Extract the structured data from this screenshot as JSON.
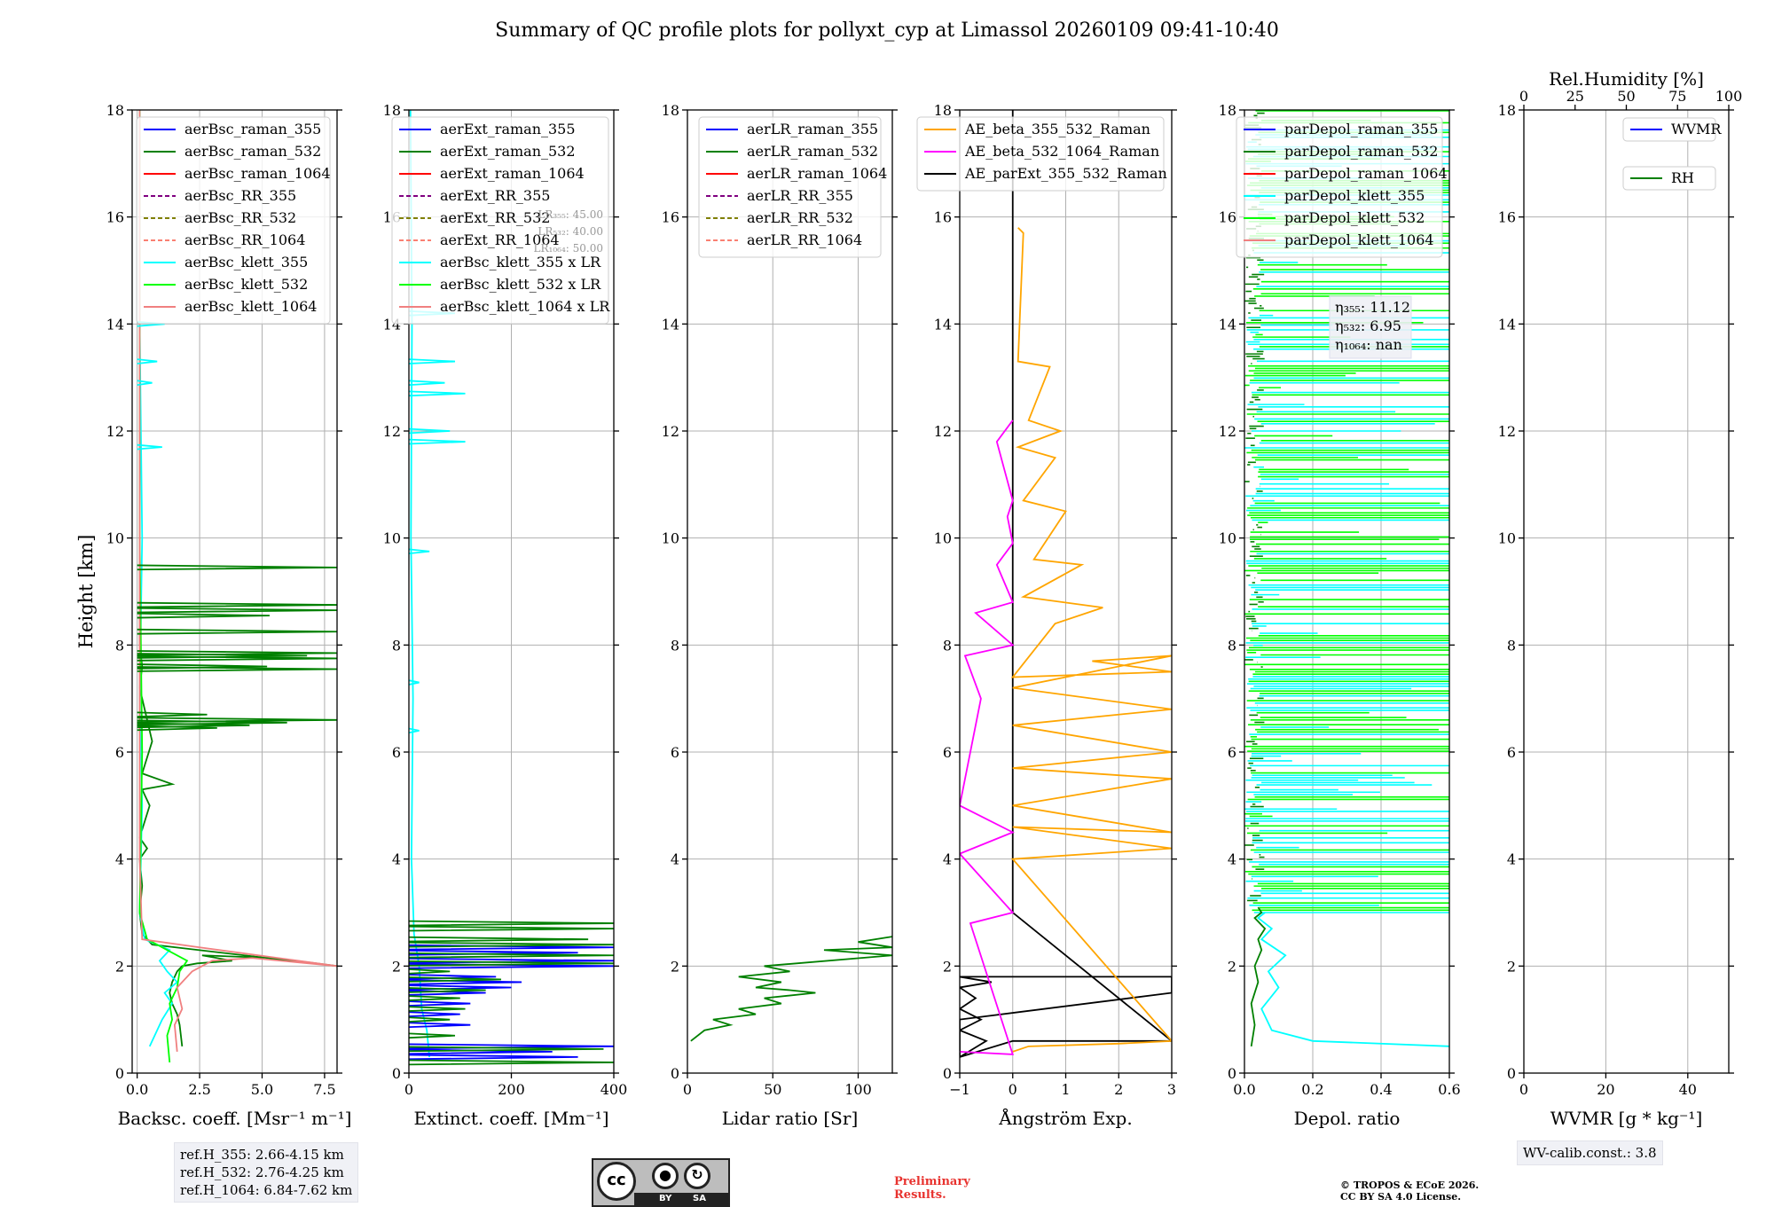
{
  "figure_title": "Summary of QC profile plots for pollyxt_cyp at Limassol 20260109 09:41-10:40",
  "ylabel": "Height [km]",
  "colors": {
    "blue": "#0000ff",
    "green": "#008000",
    "red": "#ff0000",
    "purple": "#800080",
    "olive": "#808000",
    "salmon": "#fa8072",
    "cyan": "#00ffff",
    "lime": "#00ff00",
    "lightcoral": "#f08080",
    "orange": "#ffa500",
    "magenta": "#ff00ff",
    "black": "#000000"
  },
  "chart_data": [
    {
      "id": "bsc",
      "type": "line",
      "xlabel": "Backsc. coeff. [Msr⁻¹ m⁻¹]",
      "xlim": [
        -0.2,
        8.0
      ],
      "ylim": [
        0,
        18
      ],
      "xticks": [
        0.0,
        2.5,
        5.0,
        7.5
      ],
      "xticklabels": [
        "0.0",
        "2.5",
        "5.0",
        "7.5"
      ],
      "yticks": [
        0,
        2,
        4,
        6,
        8,
        10,
        12,
        14,
        16,
        18
      ],
      "legend": [
        {
          "label": "aerBsc_raman_355",
          "color": "blue",
          "dash": false
        },
        {
          "label": "aerBsc_raman_532",
          "color": "green",
          "dash": false
        },
        {
          "label": "aerBsc_raman_1064",
          "color": "red",
          "dash": false
        },
        {
          "label": "aerBsc_RR_355",
          "color": "purple",
          "dash": true
        },
        {
          "label": "aerBsc_RR_532",
          "color": "olive",
          "dash": true
        },
        {
          "label": "aerBsc_RR_1064",
          "color": "salmon",
          "dash": true
        },
        {
          "label": "aerBsc_klett_355",
          "color": "cyan",
          "dash": false
        },
        {
          "label": "aerBsc_klett_532",
          "color": "lime",
          "dash": false
        },
        {
          "label": "aerBsc_klett_1064",
          "color": "lightcoral",
          "dash": false
        }
      ],
      "series": [
        {
          "name": "aerBsc_raman_532",
          "color": "green",
          "x": [
            1.8,
            1.7,
            1.6,
            1.4,
            1.3,
            1.4,
            1.5,
            1.6,
            1.8,
            2.4,
            3.8,
            2.6,
            5.5,
            8.0,
            0.6,
            0.2,
            0.1,
            0.2,
            0.1,
            0.4,
            0.1,
            0.5,
            0.2,
            1.4,
            0.2,
            0.6,
            0.3,
            0.1,
            0.2,
            0.1,
            0.1,
            0.1
          ],
          "y": [
            0.5,
            0.9,
            1.1,
            1.3,
            1.5,
            1.7,
            1.8,
            1.9,
            2.0,
            2.05,
            2.1,
            2.2,
            2.15,
            2.0,
            2.4,
            2.6,
            3.0,
            3.5,
            4.0,
            4.2,
            4.4,
            5.0,
            5.3,
            5.4,
            5.6,
            6.2,
            6.8,
            7.2,
            7.6,
            8.0,
            10.0,
            18.0
          ]
        },
        {
          "name": "aerBsc_klett_355",
          "color": "cyan",
          "x": [
            0.5,
            0.8,
            1.0,
            1.4,
            1.1,
            1.6,
            1.2,
            0.9,
            1.3,
            0.3,
            0.1,
            0.2,
            0.1,
            0.2,
            0.1,
            0.1
          ],
          "y": [
            0.5,
            0.8,
            1.0,
            1.3,
            1.5,
            1.7,
            1.9,
            2.1,
            2.3,
            2.5,
            3.0,
            5.0,
            7.0,
            10.0,
            14.0,
            18.0
          ]
        },
        {
          "name": "aerBsc_klett_532",
          "color": "lime",
          "x": [
            1.3,
            1.2,
            1.4,
            1.3,
            1.6,
            1.7,
            2.0,
            0.4,
            0.1,
            0.2,
            0.1,
            0.1
          ],
          "y": [
            0.2,
            0.7,
            1.0,
            1.3,
            1.6,
            1.9,
            2.1,
            2.5,
            3.0,
            6.0,
            10.0,
            18.0
          ]
        },
        {
          "name": "aerBsc_klett_1064",
          "color": "lightcoral",
          "x": [
            1.6,
            1.5,
            1.8,
            1.6,
            2.2,
            3.0,
            4.6,
            8.0,
            2.5,
            0.2,
            0.1,
            0.1
          ],
          "y": [
            0.4,
            0.9,
            1.2,
            1.6,
            1.9,
            2.1,
            2.15,
            2.0,
            2.35,
            2.5,
            4.0,
            18.0
          ]
        }
      ],
      "spikes": [
        {
          "color": "green",
          "y": [
            6.45,
            6.5,
            6.55,
            6.6,
            6.7,
            7.55,
            7.6,
            7.75,
            7.8,
            7.85,
            8.25,
            8.55,
            8.65,
            8.75,
            9.45
          ],
          "x": [
            3.2,
            4.5,
            6.0,
            8.0,
            2.8,
            8.0,
            5.2,
            8.0,
            6.8,
            8.0,
            8.0,
            5.3,
            8.0,
            8.0,
            8.0
          ]
        },
        {
          "color": "cyan",
          "y": [
            11.7,
            12.9,
            13.3,
            14.0
          ],
          "x": [
            1.0,
            0.6,
            0.8,
            1.1
          ]
        }
      ],
      "info": [
        "ref.H_355: 2.66-4.15 km",
        "ref.H_532: 2.76-4.25 km",
        "ref.H_1064: 6.84-7.62 km"
      ]
    },
    {
      "id": "ext",
      "type": "line",
      "xlabel": "Extinct. coeff. [Mm⁻¹]",
      "xlim": [
        0,
        400
      ],
      "ylim": [
        0,
        18
      ],
      "xticks": [
        0,
        200,
        400
      ],
      "xticklabels": [
        "0",
        "200",
        "400"
      ],
      "yticks": [
        0,
        2,
        4,
        6,
        8,
        10,
        12,
        14,
        16,
        18
      ],
      "legend": [
        {
          "label": "aerExt_raman_355",
          "color": "blue",
          "dash": false
        },
        {
          "label": "aerExt_raman_532",
          "color": "green",
          "dash": false
        },
        {
          "label": "aerExt_raman_1064",
          "color": "red",
          "dash": false
        },
        {
          "label": "aerExt_RR_355",
          "color": "purple",
          "dash": true
        },
        {
          "label": "aerExt_RR_532",
          "color": "olive",
          "dash": true
        },
        {
          "label": "aerExt_RR_1064",
          "color": "salmon",
          "dash": true
        },
        {
          "label": "aerBsc_klett_355 x LR",
          "color": "cyan",
          "dash": false
        },
        {
          "label": "aerBsc_klett_532 x LR",
          "color": "lime",
          "dash": false
        },
        {
          "label": "aerBsc_klett_1064 x LR",
          "color": "lightcoral",
          "dash": false
        }
      ],
      "lr_labels": [
        "LR₃₅₅: 45.00",
        "LR₅₃₂: 40.00",
        "LR₁₀₆₄: 50.00"
      ],
      "series": [
        {
          "name": "aerBsc_klett_355 x LR",
          "color": "cyan",
          "x": [
            40,
            35,
            25,
            20,
            10,
            5,
            8,
            4,
            6,
            3
          ],
          "y": [
            0.3,
            0.8,
            1.2,
            2.0,
            2.6,
            4.0,
            7.0,
            10.0,
            14.0,
            18.0
          ]
        }
      ],
      "spikes": [
        {
          "color": "blue",
          "y": [
            0.3,
            0.4,
            0.5,
            0.9,
            1.1,
            1.3,
            1.5,
            1.6,
            1.7,
            1.8,
            2.0,
            2.1,
            2.25,
            2.35
          ],
          "x": [
            330,
            280,
            400,
            120,
            100,
            120,
            150,
            200,
            220,
            170,
            400,
            400,
            330,
            400
          ]
        },
        {
          "color": "green",
          "y": [
            0.2,
            0.45,
            0.7,
            1.0,
            1.2,
            1.4,
            1.55,
            1.75,
            1.9,
            2.05,
            2.2,
            2.4,
            2.5,
            2.7,
            2.8
          ],
          "x": [
            400,
            380,
            90,
            80,
            110,
            100,
            150,
            180,
            80,
            400,
            400,
            400,
            350,
            400,
            400
          ]
        },
        {
          "color": "cyan",
          "y": [
            9.75,
            11.8,
            12.0,
            12.7,
            12.9,
            13.3,
            14.2,
            7.3,
            6.4
          ],
          "x": [
            40,
            110,
            80,
            110,
            70,
            90,
            90,
            20,
            20
          ]
        }
      ]
    },
    {
      "id": "lr",
      "type": "line",
      "xlabel": "Lidar ratio [Sr]",
      "xlim": [
        0,
        120
      ],
      "ylim": [
        0,
        18
      ],
      "xticks": [
        0,
        50,
        100
      ],
      "xticklabels": [
        "0",
        "50",
        "100"
      ],
      "yticks": [
        0,
        2,
        4,
        6,
        8,
        10,
        12,
        14,
        16,
        18
      ],
      "legend": [
        {
          "label": "aerLR_raman_355",
          "color": "blue",
          "dash": false
        },
        {
          "label": "aerLR_raman_532",
          "color": "green",
          "dash": false
        },
        {
          "label": "aerLR_raman_1064",
          "color": "red",
          "dash": false
        },
        {
          "label": "aerLR_RR_355",
          "color": "purple",
          "dash": true
        },
        {
          "label": "aerLR_RR_532",
          "color": "olive",
          "dash": true
        },
        {
          "label": "aerLR_RR_1064",
          "color": "salmon",
          "dash": true
        }
      ],
      "series": [
        {
          "name": "aerLR_raman_532",
          "color": "green",
          "x": [
            2,
            10,
            25,
            15,
            40,
            30,
            55,
            45,
            75,
            60,
            40,
            55,
            30,
            60,
            45,
            120,
            80,
            120,
            100,
            120
          ],
          "y": [
            0.6,
            0.8,
            0.9,
            1.0,
            1.1,
            1.2,
            1.3,
            1.4,
            1.5,
            1.55,
            1.6,
            1.7,
            1.8,
            1.9,
            2.0,
            2.2,
            2.3,
            2.35,
            2.45,
            2.55
          ]
        }
      ],
      "spikes": []
    },
    {
      "id": "ae",
      "type": "line",
      "xlabel": "Ångström Exp.",
      "xlim": [
        -1,
        3
      ],
      "ylim": [
        0,
        18
      ],
      "xticks": [
        -1,
        0,
        1,
        2,
        3
      ],
      "xticklabels": [
        "−1",
        "0",
        "1",
        "2",
        "3"
      ],
      "yticks": [
        0,
        2,
        4,
        6,
        8,
        10,
        12,
        14,
        16,
        18
      ],
      "legend": [
        {
          "label": "AE_beta_355_532_Raman",
          "color": "orange",
          "dash": false
        },
        {
          "label": "AE_beta_532_1064_Raman",
          "color": "magenta",
          "dash": false
        },
        {
          "label": "AE_parExt_355_532_Raman",
          "color": "black",
          "dash": false
        }
      ],
      "series": [
        {
          "name": "AE_parExt_355_532_Raman",
          "color": "black",
          "x": [
            -1,
            -0.5,
            -1,
            -0.6,
            -1,
            -0.7,
            -1,
            -0.4,
            -1,
            3,
            3,
            -1,
            -1,
            0,
            0,
            3,
            0,
            0,
            0
          ],
          "y": [
            0.3,
            0.6,
            0.8,
            1.0,
            1.2,
            1.4,
            1.6,
            1.7,
            1.8,
            1.8,
            1.5,
            1.0,
            0.3,
            0.6,
            0.6,
            0.6,
            3.0,
            10.0,
            18.0
          ]
        },
        {
          "name": "AE_beta_355_532_Raman",
          "color": "orange",
          "x": [
            0,
            0.3,
            2,
            3,
            0,
            3,
            0,
            3,
            0,
            3,
            0,
            3,
            0,
            3,
            0,
            3,
            1.5,
            3,
            0,
            0.8,
            1.7,
            0.2,
            1.3,
            0.4,
            1.0,
            0.2,
            0.8,
            0.1,
            0.9,
            0.3,
            0.7,
            0.1,
            0.2,
            0.1
          ],
          "y": [
            0.4,
            0.5,
            0.55,
            0.6,
            4.0,
            4.2,
            4.6,
            4.5,
            5.0,
            5.5,
            5.7,
            6.0,
            6.5,
            6.8,
            7.2,
            7.8,
            7.7,
            7.5,
            7.4,
            8.4,
            8.7,
            8.9,
            9.5,
            9.6,
            10.5,
            10.7,
            11.5,
            11.7,
            12.0,
            12.2,
            13.2,
            13.3,
            15.7,
            15.8
          ]
        },
        {
          "name": "AE_beta_532_1064_Raman",
          "color": "magenta",
          "x": [
            -1,
            0,
            -0.8,
            0,
            -1,
            0,
            -1,
            -0.6,
            -0.9,
            0,
            -0.7,
            0,
            -0.3,
            0,
            -0.1,
            0,
            -0.3,
            0
          ],
          "y": [
            0.4,
            0.35,
            2.8,
            3.0,
            4.1,
            4.5,
            5.0,
            7.0,
            7.8,
            8.0,
            8.6,
            8.8,
            9.5,
            9.9,
            10.4,
            10.7,
            11.8,
            12.2
          ]
        }
      ],
      "spikes": []
    },
    {
      "id": "depol",
      "type": "line",
      "xlabel": "Depol. ratio",
      "xlim": [
        0.0,
        0.6
      ],
      "ylim": [
        0,
        18
      ],
      "xticks": [
        0.0,
        0.2,
        0.4,
        0.6
      ],
      "xticklabels": [
        "0.0",
        "0.2",
        "0.4",
        "0.6"
      ],
      "yticks": [
        0,
        2,
        4,
        6,
        8,
        10,
        12,
        14,
        16,
        18
      ],
      "legend": [
        {
          "label": "parDepol_raman_355",
          "color": "blue",
          "dash": false
        },
        {
          "label": "parDepol_raman_532",
          "color": "green",
          "dash": false
        },
        {
          "label": "parDepol_raman_1064",
          "color": "red",
          "dash": false
        },
        {
          "label": "parDepol_klett_355",
          "color": "cyan",
          "dash": false
        },
        {
          "label": "parDepol_klett_532",
          "color": "lime",
          "dash": false
        },
        {
          "label": "parDepol_klett_1064",
          "color": "lightcoral",
          "dash": false
        }
      ],
      "eta": [
        "η₃₅₅: 11.12",
        "η₅₃₂: 6.95",
        "η₁₀₆₄: nan"
      ],
      "series": [
        {
          "name": "parDepol_klett_355",
          "color": "cyan",
          "x": [
            0.6,
            0.2,
            0.08,
            0.05,
            0.1,
            0.07,
            0.12,
            0.05,
            0.08,
            0.04,
            0.06
          ],
          "y": [
            0.5,
            0.6,
            0.8,
            1.2,
            1.6,
            1.9,
            2.2,
            2.5,
            2.7,
            2.9,
            3.0
          ]
        },
        {
          "name": "parDepol_raman_532",
          "color": "green",
          "x": [
            0.02,
            0.03,
            0.02,
            0.04,
            0.03,
            0.05,
            0.04,
            0.06,
            0.03,
            0.05,
            0.04
          ],
          "y": [
            0.5,
            0.9,
            1.3,
            1.7,
            2.0,
            2.3,
            2.5,
            2.7,
            2.9,
            3.0,
            3.1
          ]
        }
      ],
      "noise": {
        "colors": [
          "lime",
          "cyan",
          "green"
        ],
        "from": 3.0,
        "to": 18.0
      }
    },
    {
      "id": "wv",
      "type": "line",
      "xlabel": "WVMR [g * kg⁻¹]",
      "xlim": [
        0,
        50
      ],
      "ylim": [
        0,
        18
      ],
      "xticks": [
        0,
        20,
        40
      ],
      "xticklabels": [
        "0",
        "20",
        "40"
      ],
      "yticks": [
        0,
        2,
        4,
        6,
        8,
        10,
        12,
        14,
        16,
        18
      ],
      "top_xlabel": "Rel.Humidity [%]",
      "top_xticks": [
        0,
        25,
        50,
        75,
        100
      ],
      "top_xlim": [
        0,
        100
      ],
      "legend": [
        {
          "label": "WVMR",
          "color": "blue",
          "dash": false
        },
        {
          "label": "RH",
          "color": "green",
          "dash": false
        }
      ],
      "series": [],
      "info": [
        "WV-calib.const.: 3.8"
      ]
    }
  ],
  "footer": {
    "license_badge": {
      "cc": "cc",
      "by": "BY",
      "sa": "SA"
    },
    "preliminary": [
      "Preliminary",
      "Results."
    ],
    "copyright": [
      "© TROPOS & ECoE 2026.",
      "CC BY SA 4.0 License."
    ]
  }
}
